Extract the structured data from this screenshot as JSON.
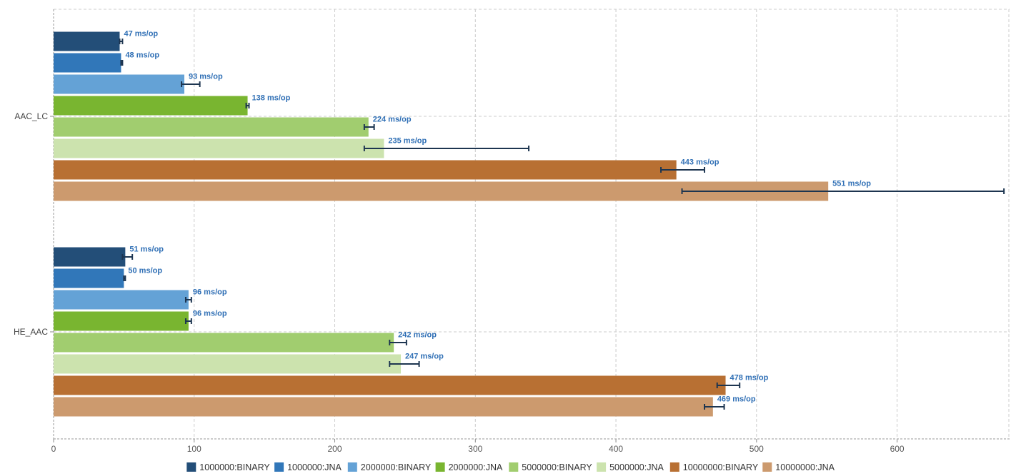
{
  "chart_data": {
    "type": "bar",
    "orientation": "horizontal",
    "unit": "ms/op",
    "categories": [
      "AAC_LC",
      "HE_AAC"
    ],
    "xlim": [
      0,
      680
    ],
    "xticks": [
      0,
      100,
      200,
      300,
      400,
      500,
      600
    ],
    "grid": true,
    "legend_position": "bottom",
    "series": [
      {
        "name": "1000000:BINARY",
        "color": "#234e78",
        "values": [
          47,
          51
        ],
        "err_low": [
          47,
          49
        ],
        "err_high": [
          49,
          56
        ]
      },
      {
        "name": "1000000:JNA",
        "color": "#3177b9",
        "values": [
          48,
          50
        ],
        "err_low": [
          48,
          50
        ],
        "err_high": [
          49,
          51
        ]
      },
      {
        "name": "2000000:BINARY",
        "color": "#64a2d6",
        "values": [
          93,
          96
        ],
        "err_low": [
          91,
          94
        ],
        "err_high": [
          104,
          98
        ]
      },
      {
        "name": "2000000:JNA",
        "color": "#79b530",
        "values": [
          138,
          96
        ],
        "err_low": [
          137,
          94
        ],
        "err_high": [
          139,
          98
        ]
      },
      {
        "name": "5000000:BINARY",
        "color": "#a1cd6f",
        "values": [
          224,
          242
        ],
        "err_low": [
          221,
          239
        ],
        "err_high": [
          228,
          251
        ]
      },
      {
        "name": "5000000:JNA",
        "color": "#cce3ae",
        "values": [
          235,
          247
        ],
        "err_low": [
          221,
          239
        ],
        "err_high": [
          338,
          260
        ]
      },
      {
        "name": "10000000:BINARY",
        "color": "#b87033",
        "values": [
          443,
          478
        ],
        "err_low": [
          432,
          472
        ],
        "err_high": [
          463,
          488
        ]
      },
      {
        "name": "10000000:JNA",
        "color": "#cc9a6e",
        "values": [
          551,
          469
        ],
        "err_low": [
          447,
          463
        ],
        "err_high": [
          676,
          477
        ]
      }
    ],
    "error_bar_color": "#1d3550"
  }
}
